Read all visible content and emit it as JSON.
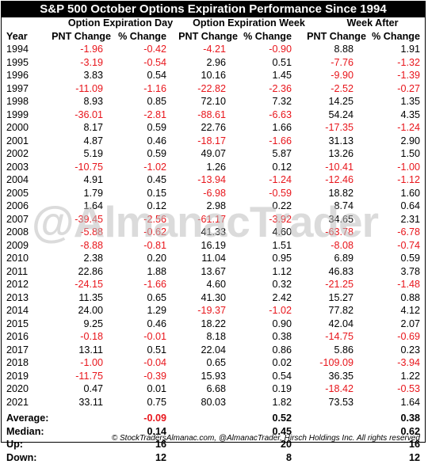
{
  "title": "S&P 500 October Options Expiration Performance Since 1994",
  "groups": [
    "Option Expiration Day",
    "Option Expiration Week",
    "Week After"
  ],
  "subheaders": [
    "Year",
    "PNT Change",
    "% Change",
    "PNT Change",
    "% Change",
    "PNT Change",
    "% Change"
  ],
  "rows": [
    [
      "1994",
      "-1.96",
      "-0.42",
      "-4.21",
      "-0.90",
      "8.88",
      "1.91"
    ],
    [
      "1995",
      "-3.19",
      "-0.54",
      "2.96",
      "0.51",
      "-7.76",
      "-1.32"
    ],
    [
      "1996",
      "3.83",
      "0.54",
      "10.16",
      "1.45",
      "-9.90",
      "-1.39"
    ],
    [
      "1997",
      "-11.09",
      "-1.16",
      "-22.82",
      "-2.36",
      "-2.52",
      "-0.27"
    ],
    [
      "1998",
      "8.93",
      "0.85",
      "72.10",
      "7.32",
      "14.25",
      "1.35"
    ],
    [
      "1999",
      "-36.01",
      "-2.81",
      "-88.61",
      "-6.63",
      "54.24",
      "4.35"
    ],
    [
      "2000",
      "8.17",
      "0.59",
      "22.76",
      "1.66",
      "-17.35",
      "-1.24"
    ],
    [
      "2001",
      "4.87",
      "0.46",
      "-18.17",
      "-1.66",
      "31.13",
      "2.90"
    ],
    [
      "2002",
      "5.19",
      "0.59",
      "49.07",
      "5.87",
      "13.26",
      "1.50"
    ],
    [
      "2003",
      "-10.75",
      "-1.02",
      "1.26",
      "0.12",
      "-10.41",
      "-1.00"
    ],
    [
      "2004",
      "4.91",
      "0.45",
      "-13.94",
      "-1.24",
      "-12.46",
      "-1.12"
    ],
    [
      "2005",
      "1.79",
      "0.15",
      "-6.98",
      "-0.59",
      "18.82",
      "1.60"
    ],
    [
      "2006",
      "1.64",
      "0.12",
      "2.98",
      "0.22",
      "8.74",
      "0.64"
    ],
    [
      "2007",
      "-39.45",
      "-2.56",
      "-61.17",
      "-3.92",
      "34.65",
      "2.31"
    ],
    [
      "2008",
      "-5.88",
      "-0.62",
      "41.33",
      "4.60",
      "-63.78",
      "-6.78"
    ],
    [
      "2009",
      "-8.88",
      "-0.81",
      "16.19",
      "1.51",
      "-8.08",
      "-0.74"
    ],
    [
      "2010",
      "2.38",
      "0.20",
      "11.04",
      "0.95",
      "6.89",
      "0.59"
    ],
    [
      "2011",
      "22.86",
      "1.88",
      "13.67",
      "1.12",
      "46.83",
      "3.78"
    ],
    [
      "2012",
      "-24.15",
      "-1.66",
      "4.60",
      "0.32",
      "-21.25",
      "-1.48"
    ],
    [
      "2013",
      "11.35",
      "0.65",
      "41.30",
      "2.42",
      "15.27",
      "0.88"
    ],
    [
      "2014",
      "24.00",
      "1.29",
      "-19.37",
      "-1.02",
      "77.82",
      "4.12"
    ],
    [
      "2015",
      "9.25",
      "0.46",
      "18.22",
      "0.90",
      "42.04",
      "2.07"
    ],
    [
      "2016",
      "-0.18",
      "-0.01",
      "8.18",
      "0.38",
      "-14.75",
      "-0.69"
    ],
    [
      "2017",
      "13.11",
      "0.51",
      "22.04",
      "0.86",
      "5.86",
      "0.23"
    ],
    [
      "2018",
      "-1.00",
      "-0.04",
      "0.65",
      "0.02",
      "-109.09",
      "-3.94"
    ],
    [
      "2019",
      "-11.75",
      "-0.39",
      "15.93",
      "0.54",
      "36.35",
      "1.22"
    ],
    [
      "2020",
      "0.47",
      "0.01",
      "6.68",
      "0.19",
      "-18.42",
      "-0.53"
    ],
    [
      "2021",
      "33.11",
      "0.75",
      "80.03",
      "1.82",
      "73.53",
      "1.64"
    ]
  ],
  "summary": [
    {
      "label": "Average:",
      "values": [
        "-0.09",
        "0.52",
        "0.38"
      ]
    },
    {
      "label": "Median:",
      "values": [
        "0.14",
        "0.45",
        "0.62"
      ]
    },
    {
      "label": "Up:",
      "values": [
        "16",
        "20",
        "16"
      ]
    },
    {
      "label": "Down:",
      "values": [
        "12",
        "8",
        "12"
      ]
    }
  ],
  "watermark": "@AlmanacTrader",
  "footer": "© StockTradersAlmanac.com, @AlmanacTrader, Hirsch Holdings Inc. All rights reserved",
  "colors": {
    "negative": "#e8151b",
    "positive": "#000000",
    "title_bg": "#000000",
    "title_fg": "#ffffff"
  }
}
